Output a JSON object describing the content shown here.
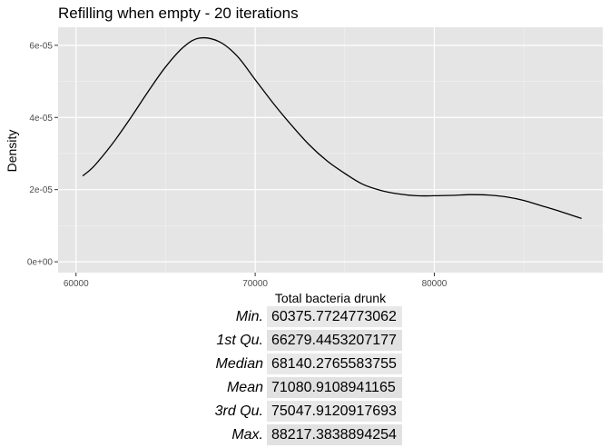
{
  "chart_data": {
    "type": "line",
    "title": "Refilling when empty - 20 iterations",
    "xlabel": "Total bacteria drunk",
    "ylabel": "Density",
    "xlim": [
      59000,
      89400
    ],
    "ylim": [
      -3e-06,
      6.5e-05
    ],
    "x_ticks": [
      60000,
      70000,
      80000
    ],
    "x_tick_labels": [
      "60000",
      "70000",
      "80000"
    ],
    "y_ticks": [
      0,
      2e-05,
      4e-05,
      6e-05
    ],
    "y_tick_labels": [
      "0e+00",
      "2e-05",
      "4e-05",
      "6e-05"
    ],
    "grid": true,
    "series": [
      {
        "x": [
          60375,
          61000,
          62000,
          63000,
          64000,
          65000,
          66000,
          66900,
          68000,
          69000,
          70000,
          71000,
          72000,
          73000,
          74000,
          75000,
          76000,
          77000,
          78000,
          79000,
          80000,
          81000,
          82000,
          83000,
          84000,
          85000,
          86000,
          87000,
          88217
        ],
        "y": [
          2.38e-05,
          2.65e-05,
          3.25e-05,
          3.95e-05,
          4.7e-05,
          5.4e-05,
          5.95e-05,
          6.2e-05,
          6.1e-05,
          5.7e-05,
          5.05e-05,
          4.4e-05,
          3.8e-05,
          3.25e-05,
          2.8e-05,
          2.45e-05,
          2.15e-05,
          1.98e-05,
          1.88e-05,
          1.83e-05,
          1.83e-05,
          1.84e-05,
          1.86e-05,
          1.85e-05,
          1.8e-05,
          1.7e-05,
          1.55e-05,
          1.4e-05,
          1.2e-05
        ]
      }
    ]
  },
  "summary": {
    "rows": [
      {
        "label": "Min.",
        "value": "60375.7724773062"
      },
      {
        "label": "1st Qu.",
        "value": "66279.4453207177"
      },
      {
        "label": "Median",
        "value": "68140.2765583755"
      },
      {
        "label": "Mean",
        "value": "71080.9108941165"
      },
      {
        "label": "3rd Qu.",
        "value": "75047.9120917693"
      },
      {
        "label": "Max.",
        "value": "88217.3838894254"
      }
    ]
  }
}
